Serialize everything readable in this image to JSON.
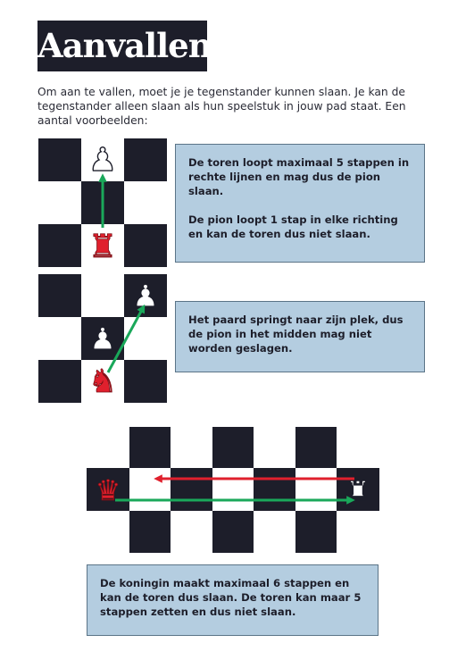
{
  "page": {
    "title": "Aanvallen",
    "intro": "Om aan te vallen, moet je je tegenstander kunnen slaan. Je kan de tegenstander alleen slaan als hun speelstuk in jouw pad staat. Een aantal voorbeelden:"
  },
  "examples": [
    {
      "text_1": "De toren loopt maximaal 5 stappen in rechte lijnen en mag dus de pion slaan.",
      "text_2": "De pion loopt 1 stap in elke richting en kan de toren dus niet slaan.",
      "pieces": [
        {
          "piece": "pawn",
          "color": "white",
          "glyph": "♟",
          "square": "b3"
        },
        {
          "piece": "rook",
          "color": "red",
          "glyph": "♜",
          "square": "b1"
        }
      ],
      "arrow": {
        "from": "b1",
        "to": "b3",
        "color": "#1aa85a"
      }
    },
    {
      "text_1": "Het paard springt naar zijn plek, dus de pion in het midden mag niet worden geslagen.",
      "pieces": [
        {
          "piece": "pawn",
          "color": "white",
          "glyph": "♟",
          "square": "c3"
        },
        {
          "piece": "pawn",
          "color": "white",
          "glyph": "♟",
          "square": "b2"
        },
        {
          "piece": "knight",
          "color": "red",
          "glyph": "♞",
          "square": "b1"
        }
      ],
      "arrow": {
        "from": "b1",
        "to": "c3",
        "color": "#1aa85a"
      }
    },
    {
      "text_1": "De koningin maakt maximaal 6 stappen en kan de toren dus slaan. De toren kan maar 5 stappen zetten en dus niet slaan.",
      "pieces": [
        {
          "piece": "queen",
          "color": "red",
          "glyph": "♛"
        },
        {
          "piece": "rook",
          "color": "white",
          "glyph": "♜"
        }
      ],
      "arrows": [
        {
          "direction": "queen-to-rook",
          "color": "#1aa85a"
        },
        {
          "direction": "rook-to-queen",
          "color": "#e0202d"
        }
      ]
    }
  ],
  "colors": {
    "dark_square": "#1d1e2a",
    "light_square": "#ffffff",
    "info_box": "#b4cde0",
    "red_piece": "#e0202d",
    "green_arrow": "#1aa85a",
    "red_arrow": "#e0202d"
  }
}
